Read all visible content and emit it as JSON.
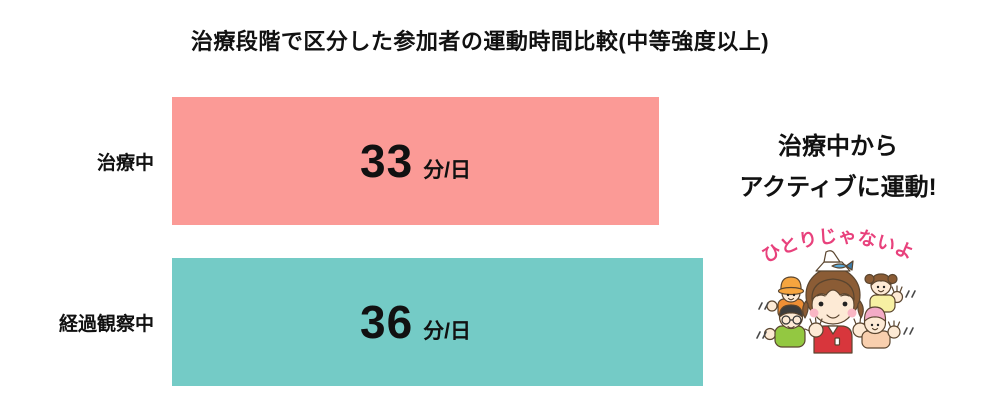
{
  "title": "治療段階で区分した参加者の運動時間比較(中等強度以上)",
  "chart_data": {
    "type": "bar",
    "orientation": "horizontal",
    "title": "治療段階で区分した参加者の運動時間比較(中等強度以上)",
    "categories": [
      "治療中",
      "経過観察中"
    ],
    "values": [
      33,
      36
    ],
    "unit": "分/日",
    "bar_colors": [
      "#fb9a96",
      "#74cbc6"
    ],
    "xlim": [
      0,
      36
    ],
    "grid": false,
    "legend": false,
    "value_labels_inside_bars": true
  },
  "annotation": {
    "lines": [
      "治療中から",
      "アクティブに運動!"
    ]
  },
  "illustration": {
    "caption": "ひとりじゃないよ",
    "caption_color": "#e8417c"
  },
  "colors": {
    "background": "#ffffff",
    "text": "#111111",
    "bar_treatment": "#fb9a96",
    "bar_followup": "#74cbc6",
    "caption_pink": "#e8417c"
  }
}
